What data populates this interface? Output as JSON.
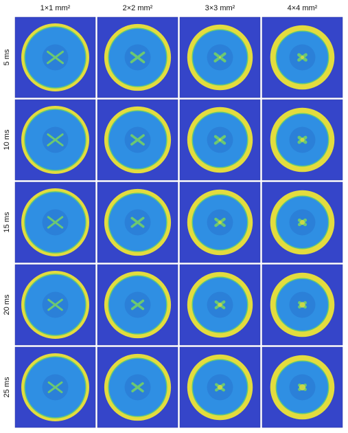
{
  "columns": [
    "1×1 mm²",
    "2×2 mm²",
    "3×3 mm²",
    "4×4 mm²"
  ],
  "rows": [
    "5 ms",
    "10 ms",
    "15 ms",
    "20 ms",
    "25 ms"
  ]
}
